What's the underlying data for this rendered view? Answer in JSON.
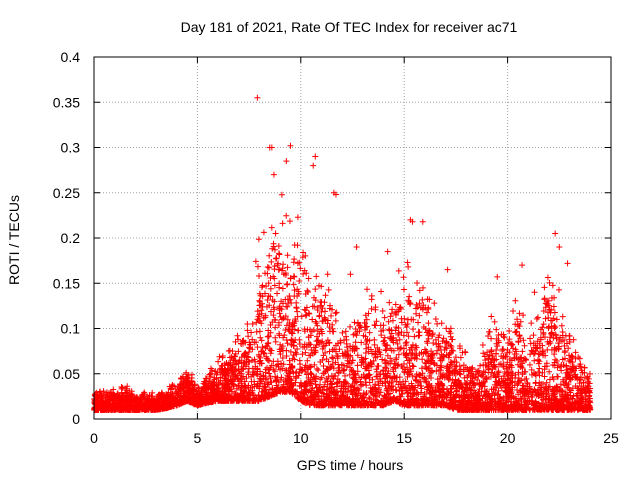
{
  "chart_data": {
    "type": "scatter",
    "title": "Day 181 of 2021, Rate Of TEC Index for receiver ac71",
    "xlabel": "GPS time / hours",
    "ylabel": "ROTI / TECUs",
    "xlim": [
      0,
      25
    ],
    "ylim": [
      0,
      0.4
    ],
    "x_ticks": [
      "0",
      "5",
      "10",
      "15",
      "20",
      "25"
    ],
    "y_ticks": [
      "0",
      "0.05",
      "0.1",
      "0.15",
      "0.2",
      "0.25",
      "0.3",
      "0.35",
      "0.4"
    ],
    "grid": true,
    "marker": "+",
    "color": "#ff0000",
    "envelope_hours": [
      0,
      0.5,
      1,
      1.5,
      2,
      2.5,
      3,
      3.5,
      4,
      4.5,
      5,
      5.5,
      6,
      6.5,
      7,
      7.5,
      8,
      8.5,
      9,
      9.5,
      10,
      10.5,
      11,
      11.5,
      12,
      12.5,
      13,
      13.5,
      14,
      14.5,
      15,
      15.5,
      16,
      16.5,
      17,
      17.5,
      18,
      18.5,
      19,
      19.5,
      20,
      20.5,
      21,
      21.5,
      22,
      22.5,
      23,
      23.5,
      24
    ],
    "envelope_values": [
      0.03,
      0.035,
      0.035,
      0.04,
      0.03,
      0.03,
      0.03,
      0.035,
      0.045,
      0.06,
      0.04,
      0.05,
      0.07,
      0.08,
      0.1,
      0.12,
      0.22,
      0.27,
      0.26,
      0.24,
      0.22,
      0.17,
      0.19,
      0.14,
      0.12,
      0.12,
      0.15,
      0.14,
      0.16,
      0.14,
      0.21,
      0.16,
      0.17,
      0.15,
      0.12,
      0.1,
      0.08,
      0.06,
      0.1,
      0.14,
      0.1,
      0.15,
      0.1,
      0.13,
      0.19,
      0.15,
      0.1,
      0.08,
      0.06
    ],
    "baseline_values": [
      0.01,
      0.01,
      0.01,
      0.01,
      0.01,
      0.01,
      0.01,
      0.012,
      0.015,
      0.02,
      0.015,
      0.018,
      0.02,
      0.02,
      0.02,
      0.02,
      0.02,
      0.025,
      0.03,
      0.03,
      0.02,
      0.015,
      0.015,
      0.015,
      0.015,
      0.015,
      0.015,
      0.015,
      0.015,
      0.02,
      0.015,
      0.015,
      0.015,
      0.015,
      0.015,
      0.01,
      0.01,
      0.01,
      0.01,
      0.01,
      0.01,
      0.01,
      0.01,
      0.01,
      0.01,
      0.01,
      0.01,
      0.01,
      0.01
    ],
    "outliers": [
      {
        "x": 7.9,
        "y": 0.355
      },
      {
        "x": 8.5,
        "y": 0.3
      },
      {
        "x": 8.6,
        "y": 0.3
      },
      {
        "x": 9.5,
        "y": 0.302
      },
      {
        "x": 10.7,
        "y": 0.29
      },
      {
        "x": 10.6,
        "y": 0.28
      },
      {
        "x": 9.3,
        "y": 0.285
      },
      {
        "x": 8.7,
        "y": 0.27
      },
      {
        "x": 11.6,
        "y": 0.25
      },
      {
        "x": 11.7,
        "y": 0.248
      },
      {
        "x": 12.7,
        "y": 0.19
      },
      {
        "x": 14.2,
        "y": 0.185
      },
      {
        "x": 15.3,
        "y": 0.22
      },
      {
        "x": 15.4,
        "y": 0.218
      },
      {
        "x": 15.9,
        "y": 0.218
      },
      {
        "x": 22.3,
        "y": 0.205
      },
      {
        "x": 22.5,
        "y": 0.19
      },
      {
        "x": 20.7,
        "y": 0.17
      },
      {
        "x": 19.5,
        "y": 0.157
      },
      {
        "x": 22.9,
        "y": 0.172
      },
      {
        "x": 11.3,
        "y": 0.16
      },
      {
        "x": 12.4,
        "y": 0.16
      },
      {
        "x": 17.1,
        "y": 0.165
      },
      {
        "x": 21.3,
        "y": 0.14
      }
    ]
  }
}
